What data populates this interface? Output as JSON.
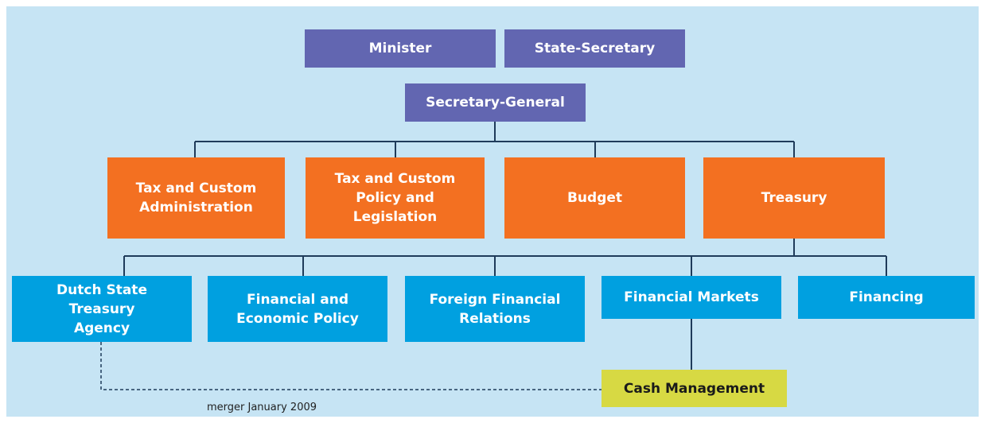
{
  "nodes": [
    {
      "label": "Minister"
    },
    {
      "label": "State-Secretary"
    },
    {
      "label": "Secretary-General"
    },
    {
      "label": "Tax and Custom Administration"
    },
    {
      "label": "Tax and Custom Policy and Legislation"
    },
    {
      "label": "Budget"
    },
    {
      "label": "Treasury"
    },
    {
      "label": "Dutch State Treasury Agency"
    },
    {
      "label": "Financial and Economic Policy"
    },
    {
      "label": "Foreign Financial Relations"
    },
    {
      "label": "Financial Markets"
    },
    {
      "label": "Financing"
    },
    {
      "label": "Cash Management"
    }
  ],
  "annotation": "merger January 2009"
}
